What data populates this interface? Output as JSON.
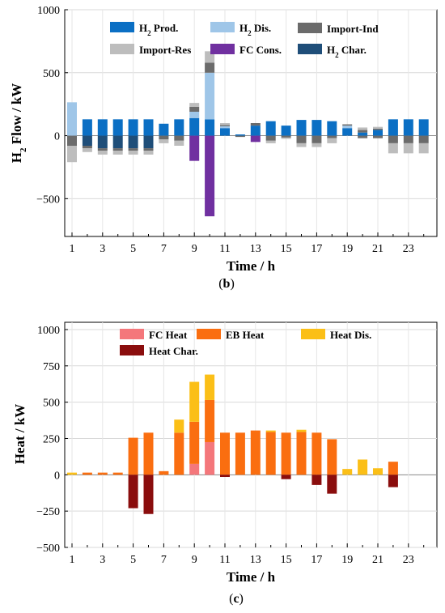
{
  "chart_data": [
    {
      "type": "bar",
      "stacked": true,
      "caption": "(b)",
      "xlabel": "Time / h",
      "ylabel": "H2 Flow / kW",
      "ylim": [
        -800,
        1000
      ],
      "yticks": [
        1000,
        500,
        0,
        -500
      ],
      "xticks": [
        1,
        3,
        5,
        7,
        9,
        11,
        13,
        15,
        17,
        19,
        21,
        23
      ],
      "legend": "top",
      "colors": {
        "h2prod": "#0b6fc4",
        "h2dis": "#9fc6e8",
        "impind": "#6b6b6b",
        "impres": "#bdbdbd",
        "fccons": "#7030a0",
        "h2char": "#1f4e79"
      },
      "x": [
        1,
        2,
        3,
        4,
        5,
        6,
        7,
        8,
        9,
        10,
        11,
        12,
        13,
        14,
        15,
        16,
        17,
        18,
        19,
        20,
        21,
        22,
        23,
        24
      ],
      "series": [
        {
          "key": "h2prod",
          "name": "H2 Prod.",
          "values": [
            0,
            130,
            130,
            130,
            130,
            130,
            95,
            130,
            140,
            130,
            60,
            10,
            80,
            115,
            80,
            125,
            125,
            115,
            60,
            25,
            45,
            130,
            130,
            130
          ]
        },
        {
          "key": "h2dis",
          "name": "H2 Dis.",
          "values": [
            265,
            0,
            0,
            0,
            0,
            0,
            0,
            0,
            50,
            370,
            15,
            0,
            0,
            0,
            0,
            0,
            0,
            0,
            20,
            0,
            0,
            0,
            0,
            0
          ]
        },
        {
          "key": "impind",
          "name": "Import-Ind",
          "values": [
            0,
            0,
            0,
            0,
            0,
            0,
            0,
            0,
            40,
            80,
            10,
            0,
            20,
            0,
            0,
            0,
            0,
            0,
            10,
            20,
            10,
            0,
            0,
            0
          ]
        },
        {
          "key": "impres",
          "name": "Import-Res",
          "values": [
            0,
            0,
            0,
            0,
            0,
            0,
            0,
            0,
            30,
            90,
            15,
            0,
            0,
            0,
            0,
            0,
            0,
            0,
            0,
            20,
            15,
            0,
            0,
            0
          ]
        },
        {
          "key": "fccons",
          "name": "FC Cons.",
          "values": [
            0,
            0,
            0,
            0,
            0,
            0,
            0,
            0,
            -200,
            -640,
            0,
            0,
            -50,
            0,
            0,
            0,
            0,
            0,
            0,
            0,
            0,
            0,
            0,
            0
          ]
        },
        {
          "key": "h2char",
          "name": "H2 Char.",
          "values": [
            0,
            -80,
            -100,
            -100,
            -100,
            -100,
            0,
            0,
            0,
            0,
            0,
            0,
            0,
            0,
            0,
            0,
            0,
            0,
            0,
            0,
            0,
            0,
            0,
            0
          ]
        },
        {
          "key": "impind",
          "name": "Import-Ind",
          "values": [
            -80,
            -20,
            -20,
            -20,
            -20,
            -20,
            -30,
            -40,
            0,
            0,
            0,
            -10,
            0,
            -40,
            -15,
            -60,
            -60,
            -20,
            0,
            -20,
            -20,
            -60,
            -60,
            -60
          ]
        },
        {
          "key": "impres",
          "name": "Import-Res",
          "values": [
            -130,
            -30,
            -30,
            -30,
            -30,
            -30,
            -30,
            -40,
            0,
            0,
            0,
            0,
            0,
            -20,
            -10,
            -30,
            -30,
            -40,
            0,
            0,
            0,
            -80,
            -80,
            -80
          ]
        }
      ]
    },
    {
      "type": "bar",
      "stacked": true,
      "caption": "(c)",
      "xlabel": "Time / h",
      "ylabel": "Heat / kW",
      "ylim": [
        -500,
        1050
      ],
      "yticks": [
        1000,
        750,
        500,
        250,
        0,
        -250,
        -500
      ],
      "xticks": [
        1,
        3,
        5,
        7,
        9,
        11,
        13,
        15,
        17,
        19,
        21,
        23
      ],
      "legend": "top",
      "colors": {
        "fcheat": "#f4777b",
        "ebheat": "#fa6e10",
        "heatdis": "#fbbf17",
        "heatchar": "#8a0d0d"
      },
      "x": [
        1,
        2,
        3,
        4,
        5,
        6,
        7,
        8,
        9,
        10,
        11,
        12,
        13,
        14,
        15,
        16,
        17,
        18,
        19,
        20,
        21,
        22,
        23,
        24
      ],
      "series": [
        {
          "key": "fcheat",
          "name": "FC Heat",
          "values": [
            0,
            0,
            0,
            0,
            0,
            0,
            0,
            0,
            75,
            225,
            0,
            0,
            0,
            0,
            0,
            0,
            0,
            0,
            0,
            0,
            0,
            0,
            0,
            0
          ]
        },
        {
          "key": "ebheat",
          "name": "EB Heat",
          "values": [
            0,
            15,
            15,
            15,
            255,
            290,
            25,
            290,
            290,
            290,
            290,
            290,
            305,
            295,
            290,
            295,
            290,
            245,
            0,
            0,
            0,
            90,
            0,
            0
          ]
        },
        {
          "key": "heatdis",
          "name": "Heat Dis.",
          "values": [
            15,
            0,
            0,
            0,
            0,
            0,
            0,
            90,
            275,
            175,
            0,
            0,
            0,
            10,
            0,
            15,
            0,
            0,
            40,
            105,
            45,
            0,
            0,
            0
          ]
        },
        {
          "key": "heatchar",
          "name": "Heat Char.",
          "values": [
            0,
            0,
            0,
            0,
            -230,
            -270,
            0,
            0,
            0,
            0,
            -15,
            0,
            0,
            0,
            -30,
            0,
            -70,
            -130,
            0,
            0,
            0,
            -85,
            0,
            0
          ]
        }
      ]
    }
  ]
}
